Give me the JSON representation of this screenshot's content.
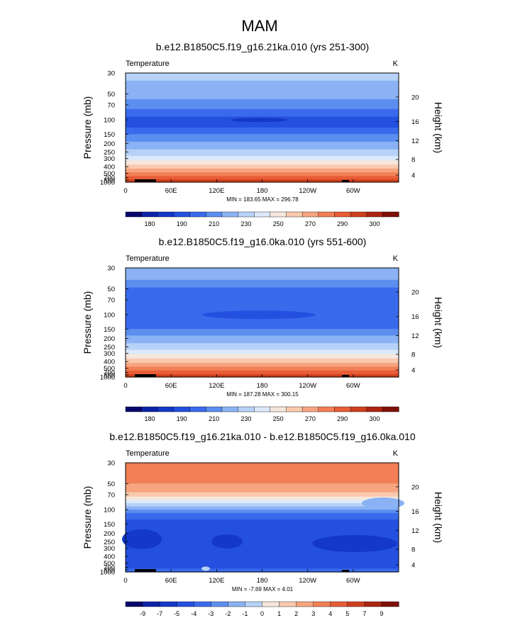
{
  "page_title": "MAM",
  "palettes": {
    "abs": [
      "#08086b",
      "#0d24a8",
      "#1438c8",
      "#2450e0",
      "#3a6aec",
      "#5c8ef0",
      "#8ab2f4",
      "#b6d2f8",
      "#dce9fa",
      "#f6e6dc",
      "#f9c9ae",
      "#f7a580",
      "#f27f55",
      "#e75d36",
      "#cf3e1e",
      "#ad2512",
      "#7f1008"
    ],
    "diff": [
      "#08086b",
      "#0d24a8",
      "#1438c8",
      "#2450e0",
      "#3a6aec",
      "#5c8ef0",
      "#8ab2f4",
      "#b6d2f8",
      "#dce9fa",
      "#f6e6dc",
      "#f9c9ae",
      "#f7a580",
      "#f27f55",
      "#e75d36",
      "#cf3e1e",
      "#ad2512",
      "#7f1008"
    ]
  },
  "chart_data": [
    {
      "type": "heatmap",
      "title": "b.e12.B1850C5.f19_g16.21ka.010 (yrs 251-300)",
      "left_label": "Temperature",
      "right_label": "K",
      "ylabel": "Pressure (mb)",
      "y2label": "Height (km)",
      "x_ticks": [
        "0",
        "60E",
        "120E",
        "180",
        "120W",
        "60W"
      ],
      "y_ticks": [
        "30",
        "50",
        "70",
        "100",
        "150",
        "200",
        "250",
        "300",
        "400",
        "500",
        "700",
        "850",
        "1000"
      ],
      "y2_ticks": [
        "20",
        "16",
        "12",
        "8",
        "4"
      ],
      "stats": "MIN = 183.65  MAX = 296.78",
      "colorbar_labels": [
        "180",
        "190",
        "210",
        "230",
        "250",
        "270",
        "290",
        "300"
      ],
      "ylim": [
        1000,
        30
      ],
      "grid": false
    },
    {
      "type": "heatmap",
      "title": "b.e12.B1850C5.f19_g16.0ka.010 (yrs 551-600)",
      "left_label": "Temperature",
      "right_label": "K",
      "ylabel": "Pressure (mb)",
      "y2label": "Height (km)",
      "x_ticks": [
        "0",
        "60E",
        "120E",
        "180",
        "120W",
        "60W"
      ],
      "y_ticks": [
        "30",
        "50",
        "70",
        "100",
        "150",
        "200",
        "250",
        "300",
        "400",
        "500",
        "700",
        "850",
        "1000"
      ],
      "y2_ticks": [
        "20",
        "16",
        "12",
        "8",
        "4"
      ],
      "stats": "MIN = 187.28  MAX = 300.15",
      "colorbar_labels": [
        "180",
        "190",
        "210",
        "230",
        "250",
        "270",
        "290",
        "300"
      ],
      "ylim": [
        1000,
        30
      ],
      "grid": false
    },
    {
      "type": "heatmap",
      "title": "b.e12.B1850C5.f19_g16.21ka.010 - b.e12.B1850C5.f19_g16.0ka.010",
      "left_label": "Temperature",
      "right_label": "K",
      "ylabel": "Pressure (mb)",
      "y2label": "Height (km)",
      "x_ticks": [
        "0",
        "60E",
        "120E",
        "180",
        "120W",
        "60W"
      ],
      "y_ticks": [
        "30",
        "50",
        "70",
        "100",
        "150",
        "200",
        "250",
        "300",
        "400",
        "500",
        "700",
        "850",
        "1000"
      ],
      "y2_ticks": [
        "20",
        "16",
        "12",
        "8",
        "4"
      ],
      "stats": "MIN = -7.69  MAX =  4.01",
      "colorbar_labels": [
        "-9",
        "-7",
        "-5",
        "-4",
        "-3",
        "-2",
        "-1",
        "0",
        "1",
        "2",
        "3",
        "4",
        "5",
        "7",
        "9"
      ],
      "ylim": [
        1000,
        30
      ],
      "grid": false
    }
  ]
}
